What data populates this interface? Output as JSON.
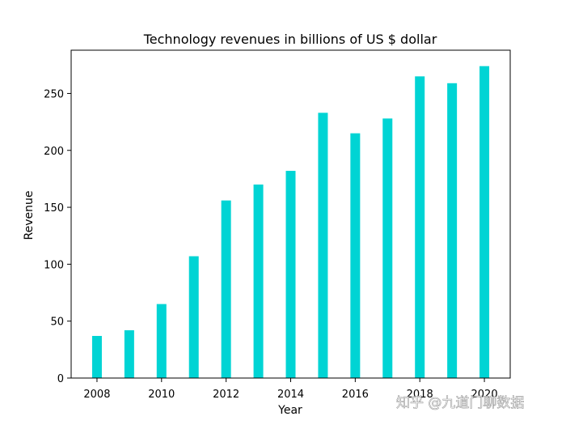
{
  "chart_data": {
    "type": "bar",
    "title": "Technology revenues in billions of US $ dollar",
    "xlabel": "Year",
    "ylabel": "Revenue",
    "categories": [
      2008,
      2009,
      2010,
      2011,
      2012,
      2013,
      2014,
      2015,
      2016,
      2017,
      2018,
      2019,
      2020
    ],
    "values": [
      37,
      42,
      65,
      107,
      156,
      170,
      182,
      233,
      215,
      228,
      265,
      259,
      274
    ],
    "xticks": [
      2008,
      2010,
      2012,
      2014,
      2016,
      2018,
      2020
    ],
    "yticks": [
      0,
      50,
      100,
      150,
      200,
      250
    ],
    "xlim": [
      2007.2,
      2020.8
    ],
    "ylim": [
      0,
      288
    ],
    "bar_color": "#00d4d4",
    "grid": false
  },
  "watermark": "知乎 @九道门聊数据"
}
